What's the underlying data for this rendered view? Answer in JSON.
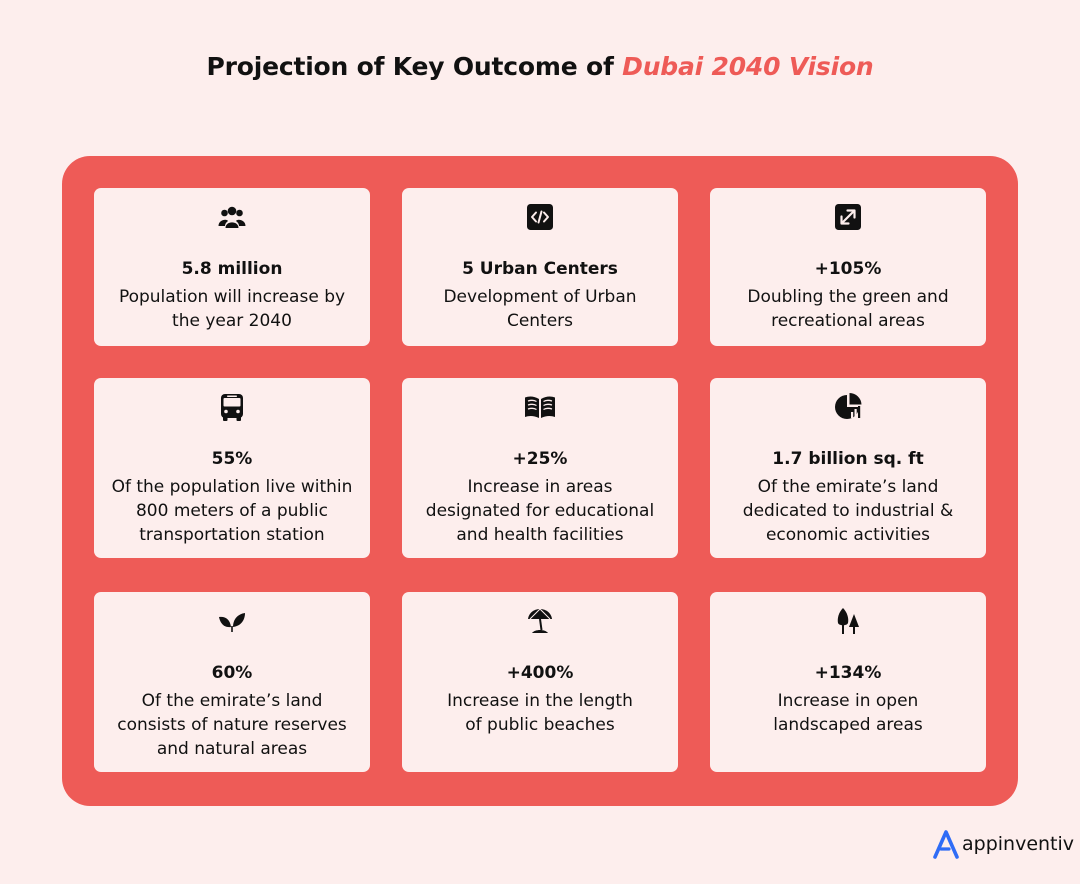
{
  "header": {
    "title_main": "Projection of Key Outcome of",
    "title_accent": "Dubai 2040 Vision"
  },
  "colors": {
    "accent": "#ee5b57",
    "background": "#fdeeed",
    "logo_blue": "#2f6cf6"
  },
  "cards": [
    {
      "icon": "people-group-icon",
      "stat": "5.8 million",
      "desc": [
        "Population will increase by",
        "the year 2040"
      ]
    },
    {
      "icon": "code-icon",
      "stat": "5 Urban Centers",
      "desc": [
        "Development of Urban",
        "Centers"
      ]
    },
    {
      "icon": "expand-arrows-icon",
      "stat": "+105%",
      "desc": [
        "Doubling the green and",
        "recreational areas"
      ]
    },
    {
      "icon": "bus-icon",
      "stat": "55%",
      "desc": [
        "Of the population live within",
        "800 meters of a public",
        "transportation station"
      ]
    },
    {
      "icon": "open-book-icon",
      "stat": "+25%",
      "desc": [
        "Increase in areas",
        "designated for educational",
        "and health facilities"
      ]
    },
    {
      "icon": "pie-chart-icon",
      "stat": "1.7 billion sq. ft",
      "desc": [
        "Of the emirate’s land",
        "dedicated to industrial &",
        "economic activities"
      ]
    },
    {
      "icon": "leaves-icon",
      "stat": "60%",
      "desc": [
        "Of the emirate’s land",
        "consists of nature reserves",
        "and natural areas"
      ]
    },
    {
      "icon": "beach-umbrella-icon",
      "stat": "+400%",
      "desc": [
        "Increase in the length",
        "of public beaches"
      ]
    },
    {
      "icon": "trees-icon",
      "stat": "+134%",
      "desc": [
        "Increase in open",
        "landscaped areas"
      ]
    }
  ],
  "brand": {
    "name": "appinventiv"
  }
}
